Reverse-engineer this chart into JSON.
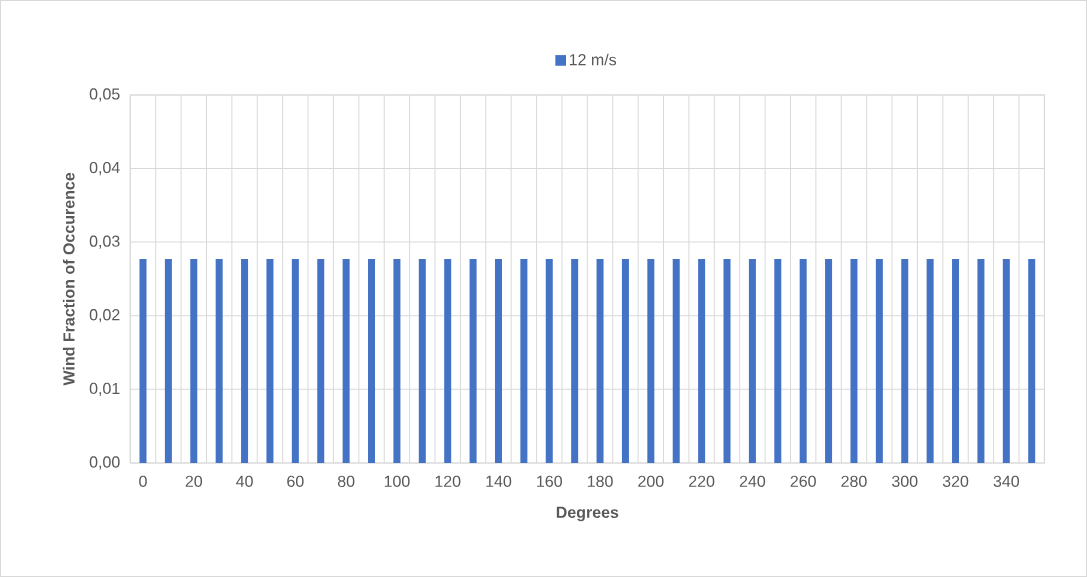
{
  "chart_data": {
    "type": "bar",
    "xlabel": "Degrees",
    "ylabel": "Wind Fraction of Occurence",
    "categories": [
      "0",
      null,
      "20",
      null,
      "40",
      null,
      "60",
      null,
      "80",
      null,
      "100",
      null,
      "120",
      null,
      "140",
      null,
      "160",
      null,
      "180",
      null,
      "200",
      null,
      "220",
      null,
      "240",
      null,
      "260",
      null,
      "280",
      null,
      "300",
      null,
      "320",
      null,
      "340",
      null
    ],
    "series": [
      {
        "name": "12 m/s",
        "color": "#4472c4",
        "values": [
          0.0277,
          0.0277,
          0.0277,
          0.0277,
          0.0277,
          0.0277,
          0.0277,
          0.0277,
          0.0277,
          0.0277,
          0.0277,
          0.0277,
          0.0277,
          0.0277,
          0.0277,
          0.0277,
          0.0277,
          0.0277,
          0.0277,
          0.0277,
          0.0277,
          0.0277,
          0.0277,
          0.0277,
          0.0277,
          0.0277,
          0.0277,
          0.0277,
          0.0277,
          0.0277,
          0.0277,
          0.0277,
          0.0277,
          0.0277,
          0.0277,
          0.0277
        ]
      }
    ],
    "ylim": [
      0,
      0.05
    ],
    "yticks": [
      {
        "value": 0,
        "label": "0,00"
      },
      {
        "value": 0.01,
        "label": "0,01"
      },
      {
        "value": 0.02,
        "label": "0,02"
      },
      {
        "value": 0.03,
        "label": "0,03"
      },
      {
        "value": 0.04,
        "label": "0,04"
      },
      {
        "value": 0.05,
        "label": "0,05"
      }
    ],
    "grid": true,
    "legend": "top"
  }
}
